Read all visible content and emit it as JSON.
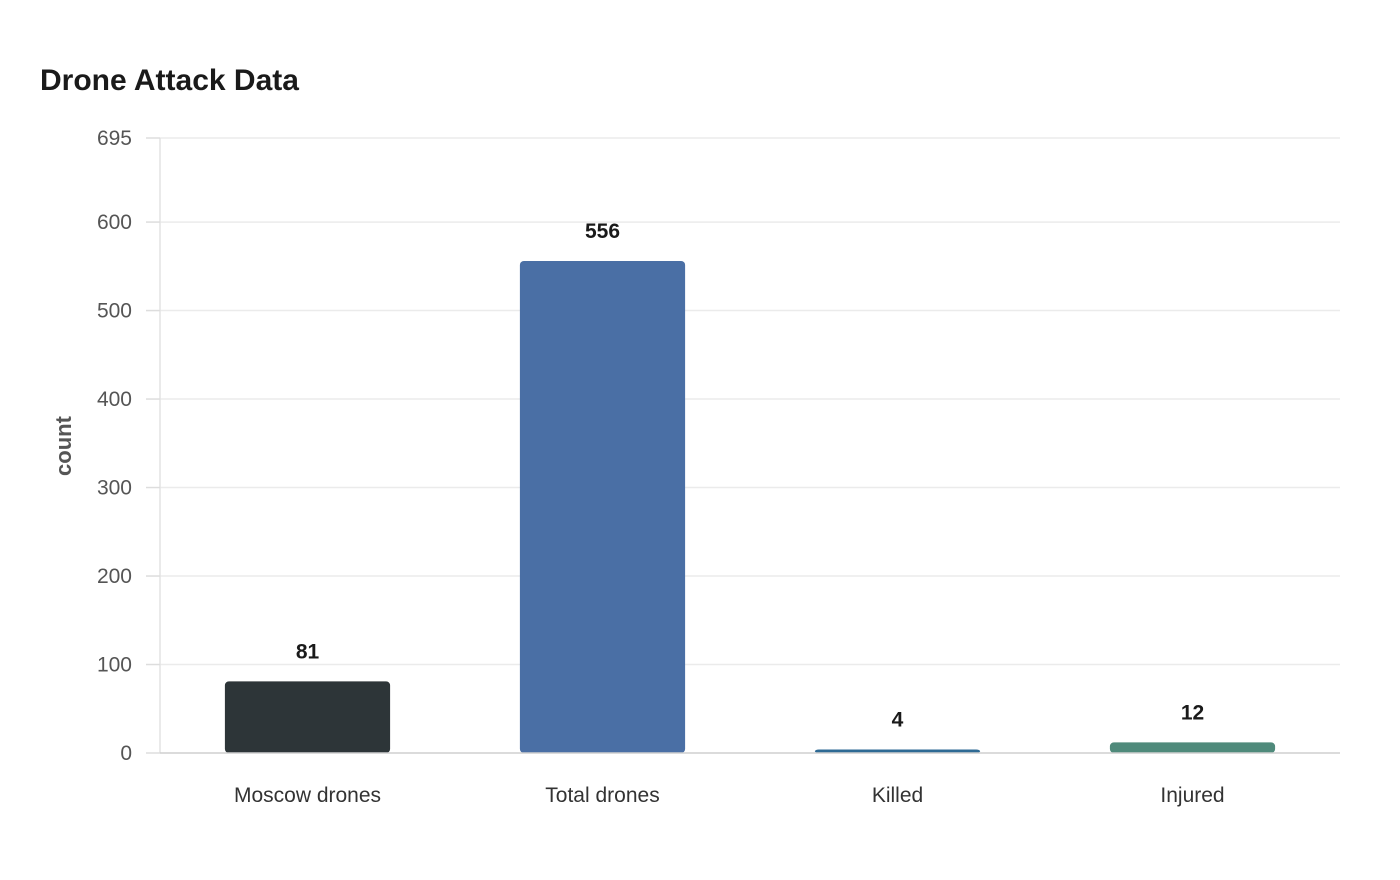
{
  "chart_data": {
    "type": "bar",
    "title": "Drone Attack Data",
    "xlabel": "",
    "ylabel": "count",
    "categories": [
      "Moscow drones",
      "Total drones",
      "Killed",
      "Injured"
    ],
    "values": [
      81,
      556,
      4,
      12
    ],
    "data_labels": [
      "81",
      "556",
      "4",
      "12"
    ],
    "bar_colors": [
      "#2d3538",
      "#4a6fa5",
      "#2e6a94",
      "#4f8a7b"
    ],
    "ylim": [
      0,
      695
    ],
    "yticks": [
      0,
      100,
      200,
      300,
      400,
      500,
      600,
      695
    ],
    "ytick_labels": [
      "0",
      "100",
      "200",
      "300",
      "400",
      "500",
      "600",
      "695"
    ],
    "grid": true,
    "legend": "none"
  }
}
